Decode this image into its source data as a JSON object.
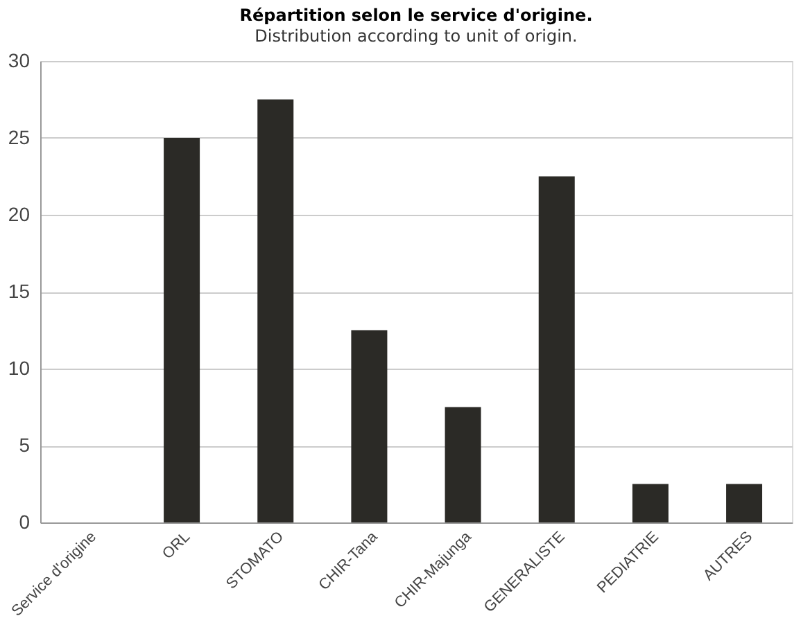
{
  "chart_data": {
    "type": "bar",
    "title": "Répartition selon le service d'origine.",
    "subtitle": "Distribution according to unit of origin.",
    "categories": [
      "Service d'origine",
      "ORL",
      "STOMATO",
      "CHIR-Tana",
      "CHIR-Majunga",
      "GENERALISTE",
      "PEDIATRIE",
      "AUTRES"
    ],
    "values": [
      null,
      25,
      27.5,
      12.5,
      7.5,
      22.5,
      2.5,
      2.5
    ],
    "color": "#2b2a26",
    "ylim": [
      0,
      30
    ],
    "yticks": [
      0,
      5,
      10,
      15,
      20,
      25,
      30
    ],
    "grid": "y"
  }
}
